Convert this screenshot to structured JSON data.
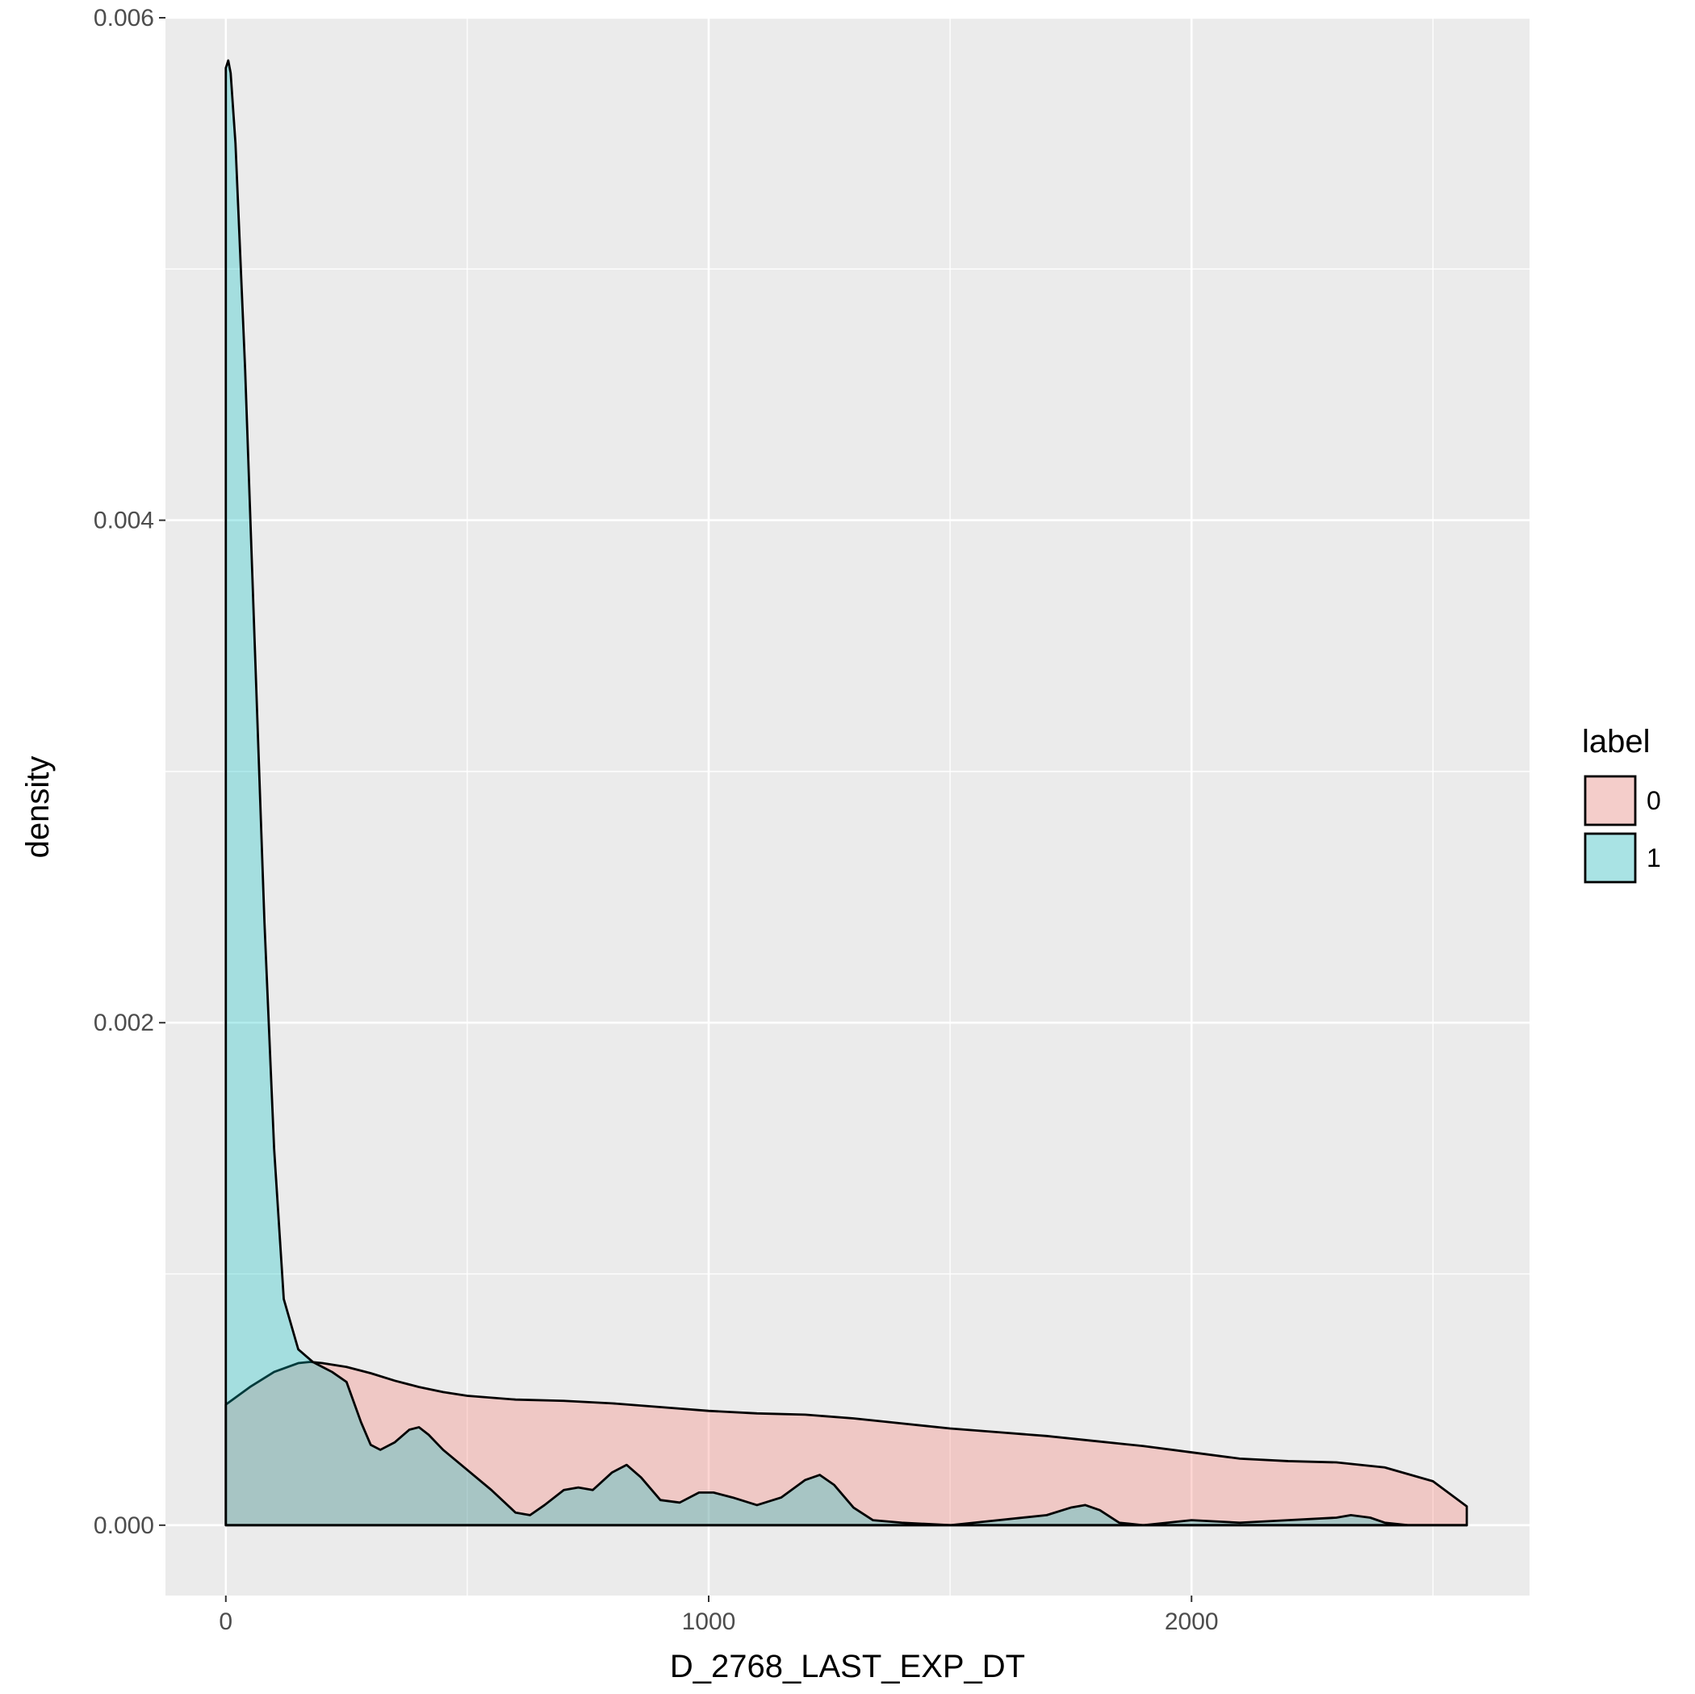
{
  "chart_data": {
    "type": "area",
    "title": "",
    "xlabel": "D_2768_LAST_EXP_DT",
    "ylabel": "density",
    "xlim": [
      -125,
      2700
    ],
    "ylim": [
      -0.00028,
      0.006
    ],
    "x_ticks": [
      0,
      1000,
      2000
    ],
    "x_tick_labels": [
      "0",
      "1000",
      "2000"
    ],
    "x_minor_ticks": [
      500,
      1500,
      2500
    ],
    "y_ticks": [
      0,
      0.002,
      0.004,
      0.006
    ],
    "y_tick_labels": [
      "0.000",
      "0.002",
      "0.004",
      "0.006"
    ],
    "y_minor_ticks": [
      0.001,
      0.003,
      0.005
    ],
    "grid": true,
    "legend": {
      "title": "label",
      "position": "right",
      "entries": [
        "0",
        "1"
      ]
    },
    "series": [
      {
        "name": "0",
        "color": "#F8766D",
        "x": [
          0,
          50,
          100,
          150,
          175,
          200,
          250,
          300,
          350,
          400,
          450,
          500,
          600,
          700,
          800,
          900,
          1000,
          1100,
          1200,
          1300,
          1400,
          1500,
          1600,
          1700,
          1800,
          1900,
          2000,
          2100,
          2200,
          2300,
          2400,
          2500,
          2570
        ],
        "values": [
          0.00048,
          0.00055,
          0.00061,
          0.000645,
          0.00065,
          0.000645,
          0.00063,
          0.000605,
          0.000575,
          0.00055,
          0.00053,
          0.000515,
          0.0005,
          0.000495,
          0.000485,
          0.00047,
          0.000455,
          0.000445,
          0.00044,
          0.000425,
          0.000405,
          0.000385,
          0.00037,
          0.000355,
          0.000335,
          0.000315,
          0.00029,
          0.000265,
          0.000255,
          0.00025,
          0.00023,
          0.000175,
          7.5e-05
        ]
      },
      {
        "name": "1",
        "color": "#00BFC4",
        "x": [
          0,
          5,
          10,
          20,
          40,
          60,
          80,
          100,
          120,
          150,
          180,
          200,
          220,
          250,
          280,
          300,
          320,
          350,
          380,
          400,
          420,
          450,
          500,
          550,
          600,
          630,
          660,
          700,
          730,
          760,
          800,
          830,
          860,
          900,
          940,
          980,
          1010,
          1050,
          1100,
          1150,
          1200,
          1230,
          1260,
          1300,
          1340,
          1400,
          1500,
          1600,
          1700,
          1750,
          1780,
          1810,
          1850,
          1900,
          2000,
          2100,
          2200,
          2300,
          2330,
          2370,
          2400,
          2450,
          2500,
          2570
        ],
        "values": [
          0.0058,
          0.00583,
          0.00578,
          0.0055,
          0.0046,
          0.0035,
          0.0024,
          0.0015,
          0.0009,
          0.0007,
          0.00065,
          0.00063,
          0.00061,
          0.00057,
          0.00041,
          0.00032,
          0.0003,
          0.00033,
          0.00038,
          0.00039,
          0.00036,
          0.0003,
          0.00022,
          0.00014,
          5e-05,
          4e-05,
          8e-05,
          0.00014,
          0.00015,
          0.00014,
          0.00021,
          0.00024,
          0.00019,
          0.0001,
          9e-05,
          0.00013,
          0.00013,
          0.00011,
          8e-05,
          0.00011,
          0.00018,
          0.0002,
          0.00016,
          7e-05,
          2e-05,
          1e-05,
          0.0,
          2e-05,
          4e-05,
          7e-05,
          8e-05,
          6e-05,
          1e-05,
          0.0,
          2e-05,
          1e-05,
          2e-05,
          3e-05,
          4e-05,
          3e-05,
          1e-05,
          0.0,
          0.0,
          0.0
        ]
      }
    ]
  }
}
